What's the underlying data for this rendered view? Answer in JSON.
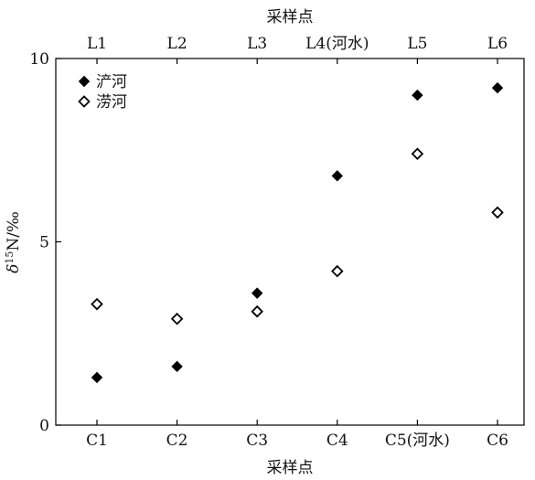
{
  "chart_data": {
    "type": "scatter",
    "title": "",
    "top_axis": {
      "label": "采样点",
      "ticks": [
        "L1",
        "L2",
        "L3",
        "L4(河水)",
        "L5",
        "L6"
      ]
    },
    "bottom_axis": {
      "label": "采样点",
      "ticks": [
        "C1",
        "C2",
        "C3",
        "C4",
        "C5(河水)",
        "C6"
      ]
    },
    "y_axis": {
      "label_prefix": "δ",
      "label_sup": "15",
      "label_suffix": "N/‰",
      "ylim": [
        0,
        10
      ],
      "ticks": [
        "0",
        "5",
        "10"
      ],
      "tick_values": [
        0,
        5,
        10
      ]
    },
    "legend_placement": "top-left",
    "grid": false,
    "series": [
      {
        "name": "浐河",
        "marker": "filled-diamond",
        "color": "#000000",
        "values": [
          1.3,
          1.6,
          3.6,
          6.8,
          9.0,
          9.2
        ]
      },
      {
        "name": "涝河",
        "marker": "open-diamond",
        "color": "#000000",
        "values": [
          3.3,
          2.9,
          3.1,
          4.2,
          7.4,
          5.8
        ]
      }
    ]
  }
}
